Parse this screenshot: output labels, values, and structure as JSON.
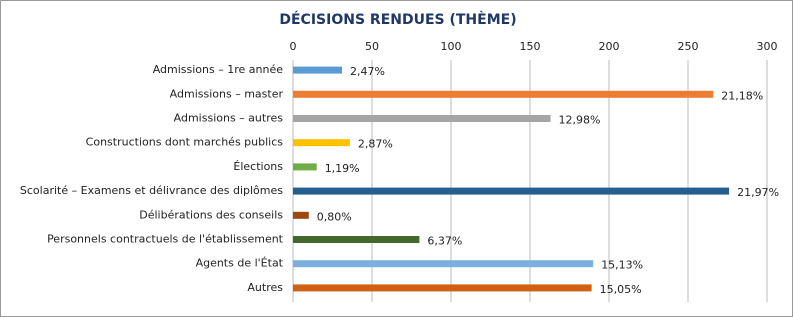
{
  "chart_data": {
    "type": "hbar",
    "title": "DÉCISIONS RENDUES (THÈME)",
    "categories": [
      "Admissions – 1re année",
      "Admissions – master",
      "Admissions – autres",
      "Constructions dont marchés publics",
      "Élections",
      "Scolarité – Examens et délivrance des diplômes",
      "Délibérations des conseils",
      "Personnels contractuels de l'établissement",
      "Agents de l'État",
      "Autres"
    ],
    "values": [
      31,
      266,
      163,
      36,
      15,
      276,
      10,
      80,
      190,
      189
    ],
    "share_labels": [
      "2,47%",
      "21,18%",
      "12,98%",
      "2,87%",
      "1,19%",
      "21,97%",
      "0,80%",
      "6,37%",
      "15,13%",
      "15,05%"
    ],
    "colors": [
      "#5b9bd5",
      "#ed7d31",
      "#a5a5a5",
      "#ffc000",
      "#70ad47",
      "#255e91",
      "#9e480e",
      "#43682b",
      "#7cafdd",
      "#d26012"
    ],
    "xlim": [
      0,
      300
    ],
    "xticks": [
      0,
      50,
      100,
      150,
      200,
      250,
      300
    ],
    "grid": true
  }
}
